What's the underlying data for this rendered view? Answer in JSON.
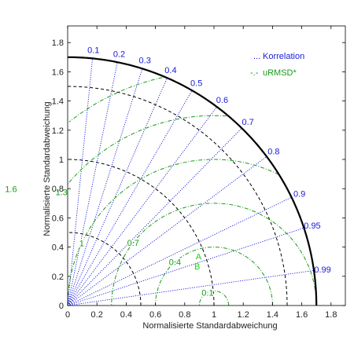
{
  "chart_data": {
    "type": "scatter",
    "title": "",
    "xlabel": "Normalisierte Standardabweichung",
    "ylabel": "Normalisierte Standardabweichung",
    "xlim": [
      0,
      1.9
    ],
    "ylim": [
      0,
      1.9
    ],
    "xticks": [
      0,
      0.2,
      0.4,
      0.6,
      0.8,
      1,
      1.2,
      1.4,
      1.6,
      1.8
    ],
    "yticks": [
      0,
      0.2,
      0.4,
      0.6,
      0.8,
      1,
      1.2,
      1.4,
      1.6,
      1.8
    ],
    "xtick_labels": [
      "0",
      "0.2",
      "0.4",
      "0.6",
      "0.8",
      "1",
      "1.2",
      "1.4",
      "1.6",
      "1.8"
    ],
    "ytick_labels": [
      "0",
      "0.2",
      "0.4",
      "0.6",
      "0.8",
      "1",
      "1.2",
      "1.4",
      "1.6",
      "1.8"
    ],
    "max_std": 1.7,
    "std_dev_arcs": [
      0.5,
      1.0,
      1.5
    ],
    "correlation_lines": [
      0.1,
      0.2,
      0.3,
      0.4,
      0.5,
      0.6,
      0.7,
      0.8,
      0.9,
      0.95,
      0.99
    ],
    "correlation_labels": [
      "0.1",
      "0.2",
      "0.3",
      "0.4",
      "0.5",
      "0.6",
      "0.7",
      "0.8",
      "0.9",
      "0.95",
      "0.99"
    ],
    "urmsd_arcs": [
      0.1,
      0.4,
      0.7,
      1.0,
      1.3,
      1.6
    ],
    "urmsd_labels": [
      "0.1",
      "0.4",
      "0.7",
      "1",
      "1.3",
      "1.6"
    ],
    "reference_std": 1.0,
    "points": [
      {
        "label": "A",
        "x": 0.895,
        "y": 0.335
      },
      {
        "label": "B",
        "x": 0.885,
        "y": 0.27
      }
    ],
    "legend": {
      "placement": "top-right",
      "entries": [
        {
          "marker": "...",
          "text": "Korrelation",
          "color": "#1a1adc"
        },
        {
          "marker": "-.-",
          "text": "uRMSD*",
          "color": "#1a9a1a"
        }
      ]
    },
    "grid": false,
    "colors": {
      "correlation": "#1a1adc",
      "urmsd": "#1a9a1a",
      "std_dev": "#000000",
      "points": "#22cc22"
    }
  }
}
